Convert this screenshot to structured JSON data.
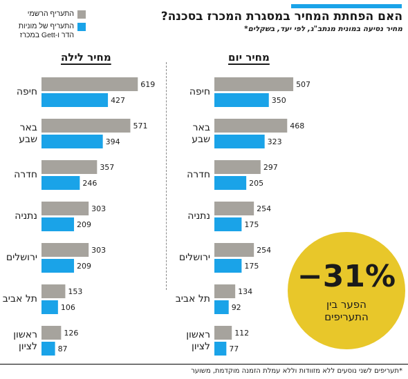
{
  "title": "האם הפחתת המחיר במסגרת המכרז בסכנה?",
  "subtitle": "מחיר נסיעה במונית מנתב\"ג, לפי יעד, בשקלים*",
  "footnote": "*תעריפים לשני נוסעים ללא מזוודות וללא עמלת הזמנה מוקדמת, משוער",
  "badge": {
    "value": "−31%",
    "text_line1": "הפער בין",
    "text_line2": "התעריפים"
  },
  "colors": {
    "official": "#a6a39d",
    "gett": "#1aa3e8",
    "accent": "#1aa3e8",
    "badge": "#e8c72a"
  },
  "chart_data": [
    {
      "type": "bar",
      "title": "מחיר לילה",
      "categories": [
        "חיפה",
        "באר שבע",
        "חדרה",
        "נתניה",
        "ירושלים",
        "תל אביב",
        "ראשון לציון"
      ],
      "category_lines": [
        [
          "חיפה"
        ],
        [
          "באר",
          "שבע"
        ],
        [
          "חדרה"
        ],
        [
          "נתניה"
        ],
        [
          "ירושלים"
        ],
        [
          "תל אביב"
        ],
        [
          "ראשון",
          "לציון"
        ]
      ],
      "series": [
        {
          "name": "התעריף הרשמי",
          "values": [
            619,
            571,
            357,
            303,
            303,
            153,
            126
          ]
        },
        {
          "name": "התעריף של מוניות הדר ו-Gett במכרז",
          "values": [
            427,
            394,
            246,
            209,
            209,
            106,
            87
          ]
        }
      ]
    },
    {
      "type": "bar",
      "title": "מחיר יום",
      "categories": [
        "חיפה",
        "באר שבע",
        "חדרה",
        "נתניה",
        "ירושלים",
        "תל אביב",
        "ראשון לציון"
      ],
      "category_lines": [
        [
          "חיפה"
        ],
        [
          "באר",
          "שבע"
        ],
        [
          "חדרה"
        ],
        [
          "נתניה"
        ],
        [
          "ירושלים"
        ],
        [
          "תל אביב"
        ],
        [
          "ראשון",
          "לציון"
        ]
      ],
      "series": [
        {
          "name": "התעריף הרשמי",
          "values": [
            507,
            468,
            297,
            254,
            254,
            134,
            112
          ]
        },
        {
          "name": "התעריף של מוניות הדר ו-Gett במכרז",
          "values": [
            350,
            323,
            205,
            175,
            175,
            92,
            77
          ]
        }
      ]
    }
  ],
  "legend": [
    {
      "label": "התעריף הרשמי"
    },
    {
      "label_line1": "התעריף של מוניות",
      "label_line2": "הדר ו-Gett במכרז"
    }
  ]
}
